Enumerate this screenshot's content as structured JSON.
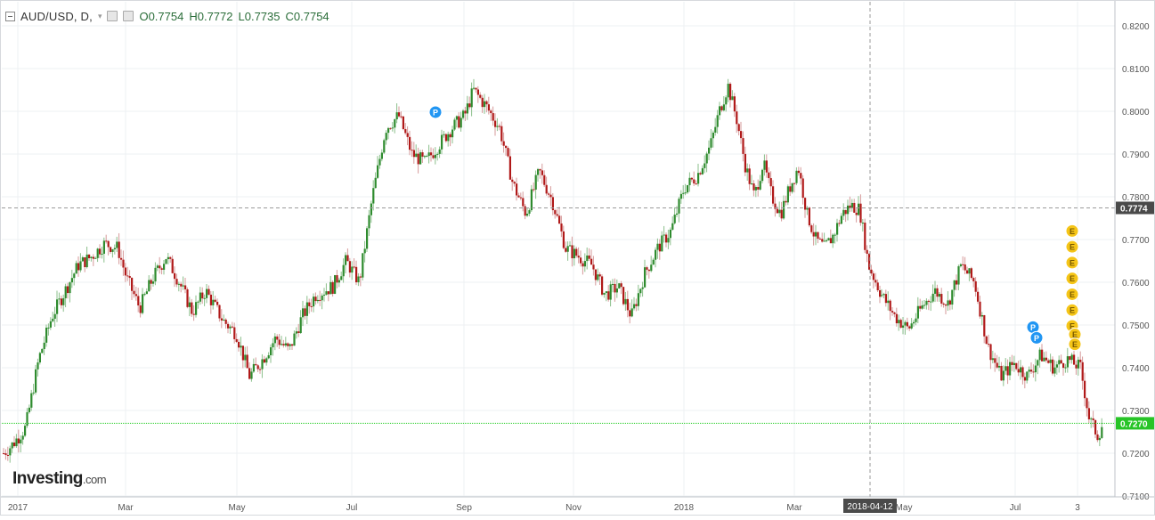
{
  "legend": {
    "symbol": "AUD/USD, D,",
    "open": "O0.7754",
    "high": "H0.7772",
    "low": "L0.7735",
    "close": "C0.7754"
  },
  "logo": {
    "main": "Investing",
    "suffix": ".com"
  },
  "chart_data": {
    "type": "candlestick",
    "y_ticks": [
      "0.8200",
      "0.8100",
      "0.8000",
      "0.7900",
      "0.7800",
      "0.7700",
      "0.7600",
      "0.7500",
      "0.7400",
      "0.7300",
      "0.7200",
      "0.7100"
    ],
    "x_labels": [
      "2017",
      "Mar",
      "May",
      "Jul",
      "Sep",
      "Nov",
      "2018",
      "Mar",
      "May",
      "Jul",
      "3"
    ],
    "ylim": [
      0.71,
      0.82
    ],
    "crosshair": {
      "date_label": "2018-04-12",
      "price_label": "0.7774"
    },
    "last_price_label": "0.7270",
    "colors": {
      "up": "#2e8b2e",
      "down": "#b01919",
      "last_price": "#22cc22",
      "crosshair": "#9a9a9a"
    },
    "markers": [
      {
        "label": "P",
        "x_label": "Aug",
        "price": 0.7998,
        "color": "#2196f3"
      },
      {
        "label": "P",
        "x_label": "Jul",
        "price": 0.7495,
        "color": "#2196f3"
      },
      {
        "label": "P",
        "x_label": "Jul",
        "price": 0.747,
        "color": "#2196f3"
      },
      {
        "label": "E",
        "price": 0.772,
        "color": "#f5c518"
      },
      {
        "label": "E",
        "price": 0.7683,
        "color": "#f5c518"
      },
      {
        "label": "E",
        "price": 0.7646,
        "color": "#f5c518"
      },
      {
        "label": "E",
        "price": 0.7609,
        "color": "#f5c518"
      },
      {
        "label": "E",
        "price": 0.7572,
        "color": "#f5c518"
      },
      {
        "label": "E",
        "price": 0.7535,
        "color": "#f5c518"
      },
      {
        "label": "E",
        "price": 0.7498,
        "color": "#f5c518"
      },
      {
        "label": "E",
        "price": 0.7478,
        "color": "#f5c518"
      },
      {
        "label": "E",
        "price": 0.7455,
        "color": "#f5c518"
      }
    ],
    "close_path": [
      [
        0.0,
        0.72
      ],
      [
        0.01,
        0.722
      ],
      [
        0.025,
        0.726
      ],
      [
        0.04,
        0.742
      ],
      [
        0.055,
        0.752
      ],
      [
        0.07,
        0.758
      ],
      [
        0.085,
        0.764
      ],
      [
        0.1,
        0.766
      ],
      [
        0.115,
        0.769
      ],
      [
        0.13,
        0.768
      ],
      [
        0.14,
        0.761
      ],
      [
        0.155,
        0.754
      ],
      [
        0.17,
        0.761
      ],
      [
        0.185,
        0.766
      ],
      [
        0.2,
        0.76
      ],
      [
        0.215,
        0.753
      ],
      [
        0.23,
        0.758
      ],
      [
        0.25,
        0.751
      ],
      [
        0.265,
        0.748
      ],
      [
        0.28,
        0.738
      ],
      [
        0.295,
        0.742
      ],
      [
        0.31,
        0.747
      ],
      [
        0.325,
        0.744
      ],
      [
        0.34,
        0.752
      ],
      [
        0.355,
        0.757
      ],
      [
        0.375,
        0.759
      ],
      [
        0.39,
        0.765
      ],
      [
        0.405,
        0.76
      ],
      [
        0.42,
        0.78
      ],
      [
        0.435,
        0.796
      ],
      [
        0.45,
        0.799
      ],
      [
        0.465,
        0.79
      ],
      [
        0.48,
        0.788
      ],
      [
        0.495,
        0.792
      ],
      [
        0.51,
        0.796
      ],
      [
        0.525,
        0.799
      ],
      [
        0.535,
        0.805
      ],
      [
        0.55,
        0.801
      ],
      [
        0.565,
        0.796
      ],
      [
        0.58,
        0.783
      ],
      [
        0.595,
        0.776
      ],
      [
        0.61,
        0.786
      ],
      [
        0.625,
        0.779
      ],
      [
        0.64,
        0.768
      ],
      [
        0.655,
        0.766
      ],
      [
        0.67,
        0.764
      ],
      [
        0.685,
        0.757
      ],
      [
        0.7,
        0.759
      ],
      [
        0.715,
        0.752
      ],
      [
        0.73,
        0.762
      ],
      [
        0.745,
        0.768
      ],
      [
        0.76,
        0.772
      ],
      [
        0.775,
        0.782
      ],
      [
        0.79,
        0.785
      ],
      [
        0.805,
        0.792
      ],
      [
        0.815,
        0.8
      ],
      [
        0.825,
        0.806
      ],
      [
        0.835,
        0.798
      ],
      [
        0.845,
        0.787
      ],
      [
        0.855,
        0.78
      ],
      [
        0.865,
        0.788
      ],
      [
        0.875,
        0.78
      ],
      [
        0.885,
        0.776
      ],
      [
        0.895,
        0.782
      ],
      [
        0.905,
        0.787
      ],
      [
        0.915,
        0.776
      ],
      [
        0.925,
        0.77
      ],
      [
        0.935,
        0.768
      ],
      [
        0.945,
        0.771
      ],
      [
        0.955,
        0.776
      ],
      [
        0.965,
        0.778
      ],
      [
        0.975,
        0.777
      ],
      [
        0.985,
        0.764
      ],
      [
        1.0,
        0.757
      ]
    ],
    "close_path_2": [
      [
        0.0,
        0.757
      ],
      [
        0.06,
        0.752
      ],
      [
        0.12,
        0.749
      ],
      [
        0.18,
        0.754
      ],
      [
        0.24,
        0.758
      ],
      [
        0.3,
        0.755
      ],
      [
        0.36,
        0.764
      ],
      [
        0.42,
        0.76
      ],
      [
        0.48,
        0.745
      ],
      [
        0.54,
        0.738
      ],
      [
        0.6,
        0.741
      ],
      [
        0.66,
        0.738
      ],
      [
        0.72,
        0.743
      ],
      [
        0.78,
        0.74
      ],
      [
        0.84,
        0.742
      ],
      [
        0.9,
        0.74
      ],
      [
        0.94,
        0.728
      ],
      [
        0.98,
        0.724
      ],
      [
        1.0,
        0.727
      ]
    ]
  }
}
